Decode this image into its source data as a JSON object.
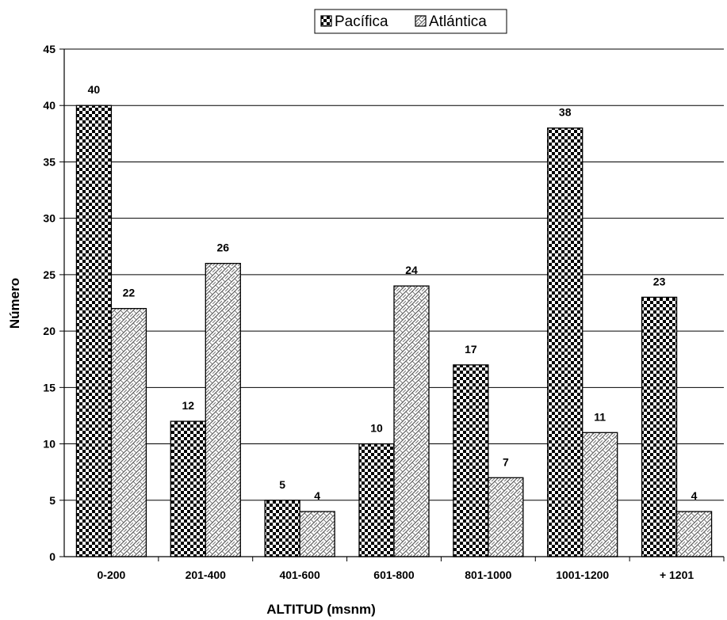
{
  "chart_data": {
    "type": "bar",
    "title": "",
    "xlabel": "ALTITUD (msnm)",
    "ylabel": "Número",
    "ylim": [
      0,
      45
    ],
    "ytick_step": 5,
    "grid": true,
    "legend_position": "top",
    "categories": [
      "0-200",
      "201-400",
      "401-600",
      "601-800",
      "801-1000",
      "1001-1200",
      "+ 1201"
    ],
    "series": [
      {
        "name": "Pacífica",
        "values": [
          40,
          12,
          5,
          10,
          17,
          38,
          23
        ],
        "pattern": "checker"
      },
      {
        "name": "Atlántica",
        "values": [
          22,
          26,
          4,
          24,
          7,
          11,
          4
        ],
        "pattern": "weave"
      }
    ]
  }
}
